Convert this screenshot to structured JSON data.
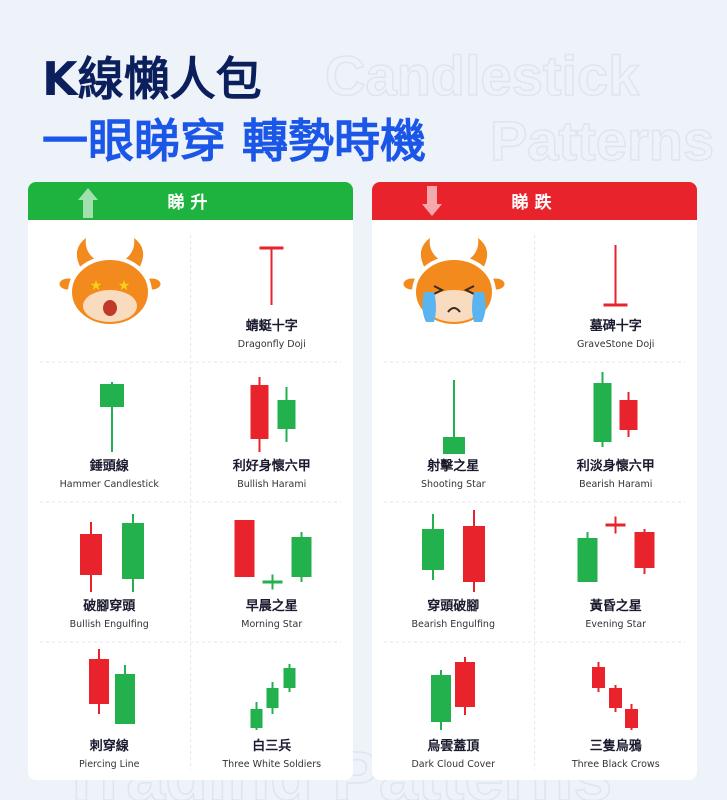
{
  "header": {
    "title": "K線懶人包",
    "subtitle": "一眼睇穿 轉勢時機",
    "watermark": [
      "Candlestick",
      "Patterns",
      "Trading Patterns"
    ]
  },
  "panels": [
    {
      "label": "睇升",
      "patterns": [
        {
          "name": "蜻蜓十字",
          "en": "Dragonfly Doji"
        },
        {
          "name": "錘頭線",
          "en": "Hammer Candlestick"
        },
        {
          "name": "利好身懷六甲",
          "en": "Bullish Harami"
        },
        {
          "name": "破腳穿頭",
          "en": "Bullish Engulfing"
        },
        {
          "name": "早晨之星",
          "en": "Morning Star"
        },
        {
          "name": "刺穿線",
          "en": "Piercing Line"
        },
        {
          "name": "白三兵",
          "en": "Three White Soldiers"
        }
      ]
    },
    {
      "label": "睇跌",
      "patterns": [
        {
          "name": "墓碑十字",
          "en": "GraveStone Doji"
        },
        {
          "name": "射擊之星",
          "en": "Shooting Star"
        },
        {
          "name": "利淡身懷六甲",
          "en": "Bearish Harami"
        },
        {
          "name": "穿頭破腳",
          "en": "Bearish Engulfing"
        },
        {
          "name": "黃昏之星",
          "en": "Evening Star"
        },
        {
          "name": "烏雲蓋頂",
          "en": "Dark Cloud Cover"
        },
        {
          "name": "三隻烏鴉",
          "en": "Three Black Crows"
        }
      ]
    }
  ]
}
